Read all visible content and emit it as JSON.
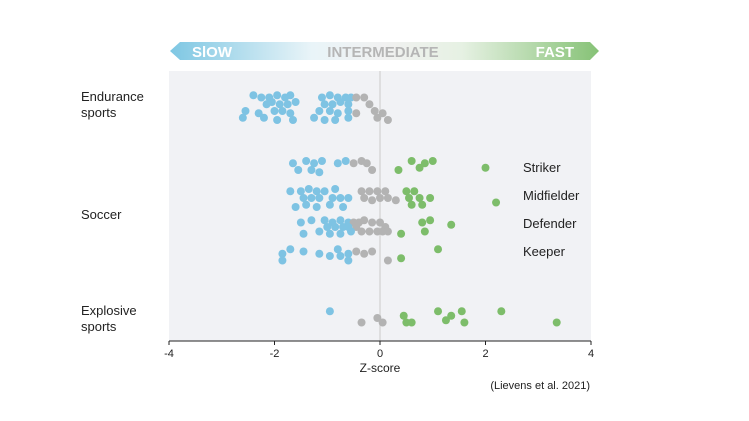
{
  "chart_data": {
    "type": "scatter",
    "title": "",
    "xlabel": "Z-score",
    "ylabel": "",
    "xlim": [
      -4,
      4
    ],
    "xticks": [
      "-4",
      "-2",
      "0",
      "2",
      "4"
    ],
    "grid": false,
    "banner": {
      "left": "SlOW",
      "middle": "INTERMEDIATE",
      "right": "FAST"
    },
    "colors": {
      "slow": "#7ec3e3",
      "intermediate": "#b3b3b3",
      "fast": "#7dbd6a",
      "panel": "#f1f2f5",
      "zero_line": "#d8d8d8"
    },
    "groups": [
      {
        "label": "Endurance sports"
      },
      {
        "label": "Soccer"
      },
      {
        "label": "Explosive sports"
      }
    ],
    "soccer_positions": [
      "Striker",
      "Midfielder",
      "Defender",
      "Keeper"
    ],
    "caption": "(Lievens et al. 2021)",
    "series": [
      {
        "name": "Endurance sports",
        "x": [
          -2.4,
          -2.25,
          -2.1,
          -1.95,
          -1.8,
          -1.7,
          -2.15,
          -1.9,
          -2.05,
          -1.75,
          -1.6,
          -2.55,
          -2.3,
          -2.0,
          -1.85,
          -1.7,
          -2.6,
          -2.2,
          -1.95,
          -1.65,
          -1.1,
          -0.95,
          -0.8,
          -0.65,
          -0.55,
          -0.45,
          -1.05,
          -0.9,
          -0.75,
          -0.6,
          -1.15,
          -0.95,
          -0.8,
          -0.6,
          -0.45,
          -1.25,
          -1.05,
          -0.85,
          -0.6,
          -0.3,
          -0.2,
          -0.1,
          0.05,
          -0.05,
          0.15
        ],
        "y": [
          0.35,
          0.3,
          0.3,
          0.35,
          0.3,
          0.35,
          0.15,
          0.15,
          0.2,
          0.15,
          0.2,
          0.0,
          -0.05,
          0.0,
          0.0,
          -0.05,
          -0.15,
          -0.15,
          -0.2,
          -0.2,
          0.3,
          0.35,
          0.3,
          0.3,
          0.3,
          0.3,
          0.15,
          0.15,
          0.2,
          0.15,
          0.0,
          0.0,
          -0.05,
          0.0,
          -0.05,
          -0.15,
          -0.2,
          -0.2,
          -0.15,
          0.3,
          0.15,
          0.0,
          -0.05,
          -0.15,
          -0.2
        ]
      },
      {
        "name": "Striker",
        "x": [
          -1.65,
          -1.4,
          -1.25,
          -1.1,
          -1.55,
          -1.3,
          -1.15,
          -0.8,
          -0.65,
          -0.5,
          -0.35,
          -0.25,
          -0.15,
          0.35,
          0.6,
          0.75,
          0.85,
          1.0,
          2.0
        ],
        "y": [
          0.15,
          0.2,
          0.15,
          0.2,
          0.0,
          0.0,
          -0.05,
          0.15,
          0.2,
          0.15,
          0.2,
          0.15,
          0.0,
          0.0,
          0.2,
          0.05,
          0.15,
          0.2,
          0.05
        ]
      },
      {
        "name": "Midfielder",
        "x": [
          -1.7,
          -1.5,
          -1.35,
          -1.2,
          -1.05,
          -0.85,
          -1.45,
          -1.3,
          -1.15,
          -0.9,
          -0.75,
          -0.6,
          -1.6,
          -1.4,
          -1.2,
          -0.95,
          -0.7,
          -0.35,
          -0.2,
          -0.05,
          0.1,
          -0.3,
          -0.15,
          0.0,
          0.15,
          0.3,
          0.5,
          0.55,
          0.65,
          0.75,
          0.6,
          0.8,
          0.95,
          2.2
        ],
        "y": [
          0.15,
          0.15,
          0.2,
          0.15,
          0.15,
          0.2,
          0.0,
          0.0,
          0.0,
          0.0,
          0.0,
          0.0,
          -0.2,
          -0.15,
          -0.2,
          -0.15,
          -0.2,
          0.15,
          0.15,
          0.15,
          0.15,
          0.0,
          -0.05,
          0.0,
          0.0,
          -0.05,
          0.15,
          0.0,
          0.15,
          0.0,
          -0.15,
          -0.15,
          0.0,
          -0.1
        ]
      },
      {
        "name": "Defender",
        "x": [
          -1.5,
          -1.3,
          -1.05,
          -0.9,
          -0.75,
          -0.6,
          -0.5,
          -1.0,
          -0.85,
          -0.7,
          -0.6,
          -0.45,
          -1.45,
          -1.15,
          -0.95,
          -0.75,
          -0.55,
          -0.4,
          -0.3,
          -0.15,
          0.0,
          0.1,
          -0.35,
          -0.2,
          -0.05,
          0.05,
          0.15,
          0.4,
          0.8,
          0.95,
          0.85,
          1.35
        ],
        "y": [
          0.1,
          0.15,
          0.15,
          0.1,
          0.15,
          0.1,
          0.1,
          0.0,
          0.0,
          0.0,
          0.0,
          0.0,
          -0.15,
          -0.1,
          -0.15,
          -0.15,
          -0.1,
          0.1,
          0.15,
          0.1,
          0.1,
          0.0,
          -0.1,
          -0.1,
          -0.1,
          -0.1,
          -0.1,
          -0.15,
          0.1,
          0.15,
          -0.1,
          0.05
        ]
      },
      {
        "name": "Keeper",
        "x": [
          -1.85,
          -1.7,
          -1.45,
          -1.15,
          -0.8,
          -0.75,
          -0.6,
          -0.45,
          -0.3,
          -0.15,
          0.15,
          0.4,
          1.1,
          -1.85,
          -0.95,
          -0.6
        ],
        "y": [
          0.05,
          0.15,
          0.1,
          0.05,
          0.15,
          0.0,
          0.05,
          0.1,
          0.05,
          0.1,
          -0.1,
          -0.05,
          0.15,
          -0.1,
          0.0,
          -0.1
        ]
      },
      {
        "name": "Explosive sports",
        "x": [
          -0.95,
          -0.35,
          -0.05,
          0.05,
          0.45,
          0.5,
          0.6,
          1.1,
          1.25,
          1.35,
          1.55,
          1.6,
          2.3,
          3.35
        ],
        "y": [
          0.15,
          -0.1,
          0.0,
          -0.1,
          0.05,
          -0.1,
          -0.1,
          0.15,
          -0.05,
          0.05,
          0.15,
          -0.1,
          0.15,
          -0.1
        ]
      }
    ]
  }
}
